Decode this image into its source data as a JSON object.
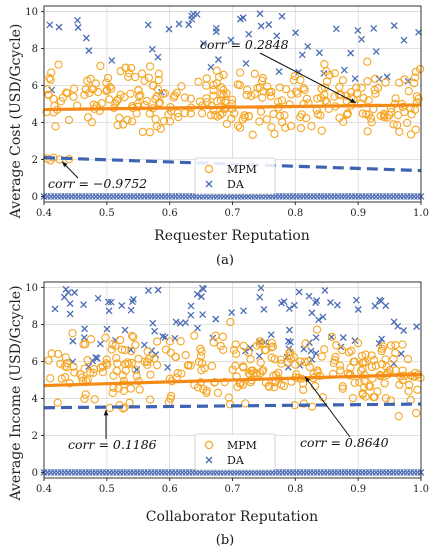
{
  "colors": {
    "mpm": "#f5a623",
    "da": "#4a6cb5",
    "mpm_fit": "#f58a17",
    "da_fit": "#3f63b3",
    "frame": "#333333"
  },
  "chart_data": [
    {
      "type": "scatter",
      "panel_label": "(a)",
      "xlabel": "Requester Reputation",
      "ylabel": "Average Cost (USD/Gcycle)",
      "xlim": [
        0.4,
        1.0
      ],
      "ylim": [
        -0.3,
        10.3
      ],
      "xticks": [
        "0.4",
        "0.5",
        "0.6",
        "0.7",
        "0.8",
        "0.9",
        "1.0"
      ],
      "yticks": [
        "0",
        "2",
        "4",
        "6",
        "8",
        "10"
      ],
      "legend": {
        "placement": "lower-center",
        "entries": [
          "MPM",
          "DA"
        ]
      },
      "series": [
        {
          "name": "MPM",
          "marker": "circle",
          "y_range_main": [
            2.5,
            8.0
          ],
          "trend": {
            "x": [
              0.4,
              1.0
            ],
            "y": [
              4.7,
              4.95
            ]
          }
        },
        {
          "name": "DA",
          "marker": "cross",
          "y_range_upper": [
            5.5,
            10.0
          ],
          "baseline_y": 0.0,
          "trend": {
            "x": [
              0.4,
              1.0
            ],
            "y": [
              2.1,
              1.4
            ]
          }
        }
      ],
      "annotations": [
        {
          "text": "corr = 0.2848",
          "x": 0.905,
          "y": 4.95
        },
        {
          "text": "corr = −0.9752",
          "x": 0.435,
          "y": 2.05
        }
      ]
    },
    {
      "type": "scatter",
      "panel_label": "(b)",
      "xlabel": "Collaborator Reputation",
      "ylabel": "Average Income (USD/Gcycle)",
      "xlim": [
        0.4,
        1.0
      ],
      "ylim": [
        -0.3,
        10.3
      ],
      "xticks": [
        "0.4",
        "0.5",
        "0.6",
        "0.7",
        "0.8",
        "0.9",
        "1.0"
      ],
      "yticks": [
        "0",
        "2",
        "4",
        "6",
        "8",
        "10"
      ],
      "legend": {
        "placement": "lower-center",
        "entries": [
          "MPM",
          "DA"
        ]
      },
      "series": [
        {
          "name": "MPM",
          "marker": "circle",
          "y_range_main": [
            2.5,
            8.5
          ],
          "trend": {
            "x": [
              0.4,
              1.0
            ],
            "y": [
              4.7,
              5.3
            ]
          }
        },
        {
          "name": "DA",
          "marker": "cross",
          "y_range_upper": [
            5.5,
            10.0
          ],
          "baseline_y": 0.0,
          "trend": {
            "x": [
              0.4,
              1.0
            ],
            "y": [
              3.5,
              3.7
            ]
          }
        }
      ],
      "annotations": [
        {
          "text": "corr = 0.1186",
          "x": 0.495,
          "y": 3.6
        },
        {
          "text": "corr = 0.8640",
          "x": 0.8,
          "y": 5.4
        }
      ]
    }
  ]
}
